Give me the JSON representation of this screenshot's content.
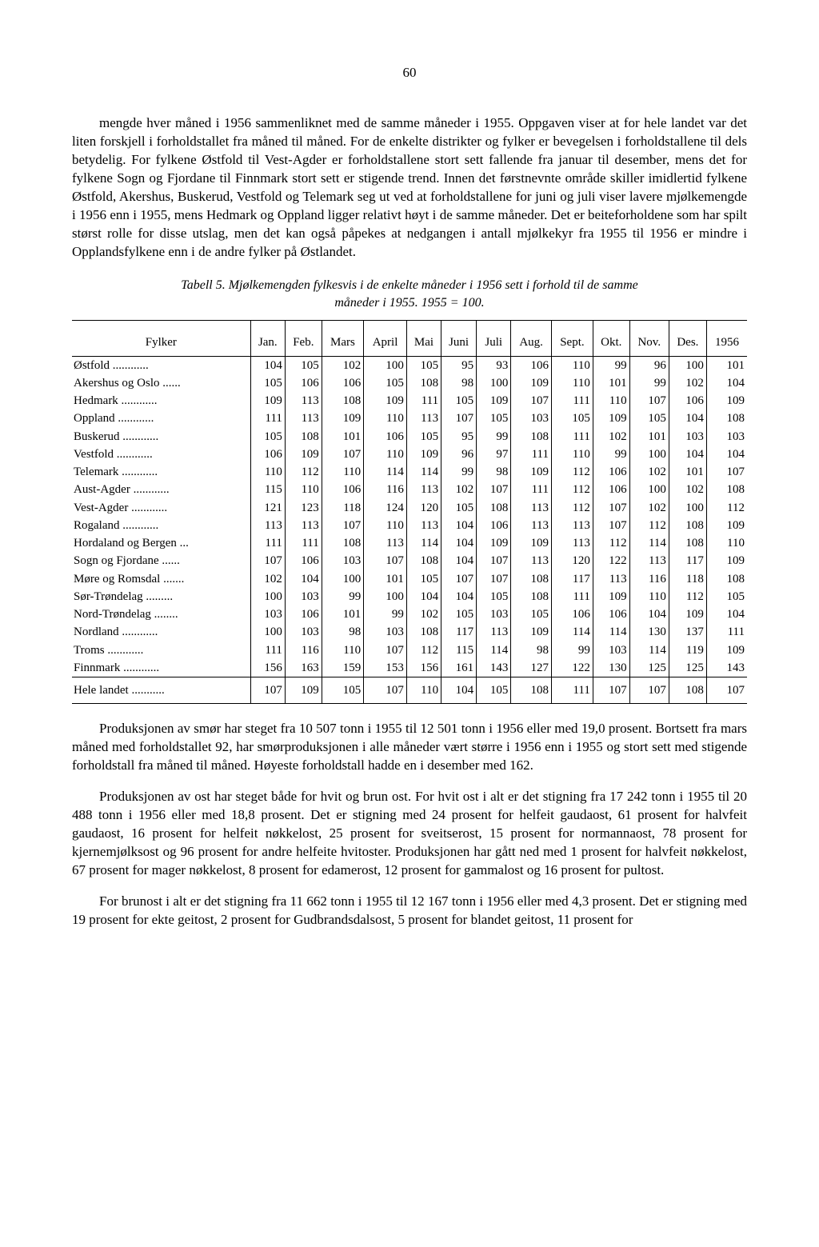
{
  "page_number": "60",
  "para1": "mengde hver måned i 1956 sammenliknet med de samme måneder i 1955. Oppgaven viser at for hele landet var det liten forskjell i forholdstallet fra måned til måned. For de enkelte distrikter og fylker er bevegelsen i forholdstallene til dels betydelig. For fylkene Østfold til Vest-Agder er forholdstallene stort sett fallende fra januar til desember, mens det for fylkene Sogn og Fjordane til Finnmark stort sett er stigende trend. Innen det førstnevnte område skiller imidlertid fylkene Østfold, Akershus, Buskerud, Vestfold og Telemark seg ut ved at forholdstallene for juni og juli viser lavere mjølkemengde i 1956 enn i 1955, mens Hedmark og Oppland ligger relativt høyt i de samme måneder. Det er beiteforholdene som har spilt størst rolle for disse utslag, men det kan også påpekes at nedgangen i antall mjølkekyr fra 1955 til 1956 er mindre i Opplandsfylkene enn i de andre fylker på Østlandet.",
  "table_caption_a": "Tabell 5. Mjølkemengden fylkesvis i de enkelte måneder i 1956 sett i forhold til de samme",
  "table_caption_b": "måneder i 1955. 1955 = 100.",
  "columns": [
    "Fylker",
    "Jan.",
    "Feb.",
    "Mars",
    "April",
    "Mai",
    "Juni",
    "Juli",
    "Aug.",
    "Sept.",
    "Okt.",
    "Nov.",
    "Des.",
    "1956"
  ],
  "rows": [
    {
      "county": "Østfold",
      "v": [
        104,
        105,
        102,
        100,
        105,
        95,
        93,
        106,
        110,
        99,
        96,
        100,
        101
      ]
    },
    {
      "county": "Akershus og Oslo",
      "v": [
        105,
        106,
        106,
        105,
        108,
        98,
        100,
        109,
        110,
        101,
        99,
        102,
        104
      ]
    },
    {
      "county": "Hedmark",
      "v": [
        109,
        113,
        108,
        109,
        111,
        105,
        109,
        107,
        111,
        110,
        107,
        106,
        109
      ]
    },
    {
      "county": "Oppland",
      "v": [
        111,
        113,
        109,
        110,
        113,
        107,
        105,
        103,
        105,
        109,
        105,
        104,
        108
      ]
    },
    {
      "county": "Buskerud",
      "v": [
        105,
        108,
        101,
        106,
        105,
        95,
        99,
        108,
        111,
        102,
        101,
        103,
        103
      ]
    },
    {
      "county": "Vestfold",
      "v": [
        106,
        109,
        107,
        110,
        109,
        96,
        97,
        111,
        110,
        99,
        100,
        104,
        104
      ]
    },
    {
      "county": "Telemark",
      "v": [
        110,
        112,
        110,
        114,
        114,
        99,
        98,
        109,
        112,
        106,
        102,
        101,
        107
      ]
    },
    {
      "county": "Aust-Agder",
      "v": [
        115,
        110,
        106,
        116,
        113,
        102,
        107,
        111,
        112,
        106,
        100,
        102,
        108
      ]
    },
    {
      "county": "Vest-Agder",
      "v": [
        121,
        123,
        118,
        124,
        120,
        105,
        108,
        113,
        112,
        107,
        102,
        100,
        112
      ]
    },
    {
      "county": "Rogaland",
      "v": [
        113,
        113,
        107,
        110,
        113,
        104,
        106,
        113,
        113,
        107,
        112,
        108,
        109
      ]
    },
    {
      "county": "Hordaland og Bergen",
      "v": [
        111,
        111,
        108,
        113,
        114,
        104,
        109,
        109,
        113,
        112,
        114,
        108,
        110
      ]
    },
    {
      "county": "Sogn og Fjordane",
      "v": [
        107,
        106,
        103,
        107,
        108,
        104,
        107,
        113,
        120,
        122,
        113,
        117,
        109
      ]
    },
    {
      "county": "Møre og Romsdal",
      "v": [
        102,
        104,
        100,
        101,
        105,
        107,
        107,
        108,
        117,
        113,
        116,
        118,
        108
      ]
    },
    {
      "county": "Sør-Trøndelag",
      "v": [
        100,
        103,
        99,
        100,
        104,
        104,
        105,
        108,
        111,
        109,
        110,
        112,
        105
      ]
    },
    {
      "county": "Nord-Trøndelag",
      "v": [
        103,
        106,
        101,
        99,
        102,
        105,
        103,
        105,
        106,
        106,
        104,
        109,
        104
      ]
    },
    {
      "county": "Nordland",
      "v": [
        100,
        103,
        98,
        103,
        108,
        117,
        113,
        109,
        114,
        114,
        130,
        137,
        111
      ]
    },
    {
      "county": "Troms",
      "v": [
        111,
        116,
        110,
        107,
        112,
        115,
        114,
        98,
        99,
        103,
        114,
        119,
        109
      ]
    },
    {
      "county": "Finnmark",
      "v": [
        156,
        163,
        159,
        153,
        156,
        161,
        143,
        127,
        122,
        130,
        125,
        125,
        143
      ]
    }
  ],
  "total": {
    "county": "Hele landet",
    "v": [
      107,
      109,
      105,
      107,
      110,
      104,
      105,
      108,
      111,
      107,
      107,
      108,
      107
    ]
  },
  "para2": "Produksjonen av smør har steget fra 10 507 tonn i 1955 til 12 501 tonn i 1956 eller med 19,0 prosent. Bortsett fra mars måned med forholdstallet 92, har smørproduksjonen i alle måneder vært større i 1956 enn i 1955 og stort sett med stigende forholdstall fra måned til måned. Høyeste forholdstall hadde en i desember med 162.",
  "para3": "Produksjonen av ost har steget både for hvit og brun ost. For hvit ost i alt er det stigning fra 17 242 tonn i 1955 til 20 488 tonn i 1956 eller med 18,8 prosent. Det er stigning med 24 prosent for helfeit gaudaost, 61 prosent for halvfeit gaudaost, 16 prosent for helfeit nøkkelost, 25 prosent for sveitserost, 15 prosent for normannaost, 78 prosent for kjernemjølksost og 96 prosent for andre helfeite hvitoster. Produksjonen har gått ned med 1 prosent for halvfeit nøkkelost, 67 prosent for mager nøkkelost, 8 prosent for edamerost, 12 prosent for gammalost og 16 prosent for pultost.",
  "para4": "For brunost i alt er det stigning fra 11 662 tonn i 1955 til 12 167 tonn i 1956 eller med 4,3 prosent. Det er stigning med 19 prosent for ekte geitost, 2 prosent for Gudbrandsdalsost, 5 prosent for blandet geitost, 11 prosent for"
}
